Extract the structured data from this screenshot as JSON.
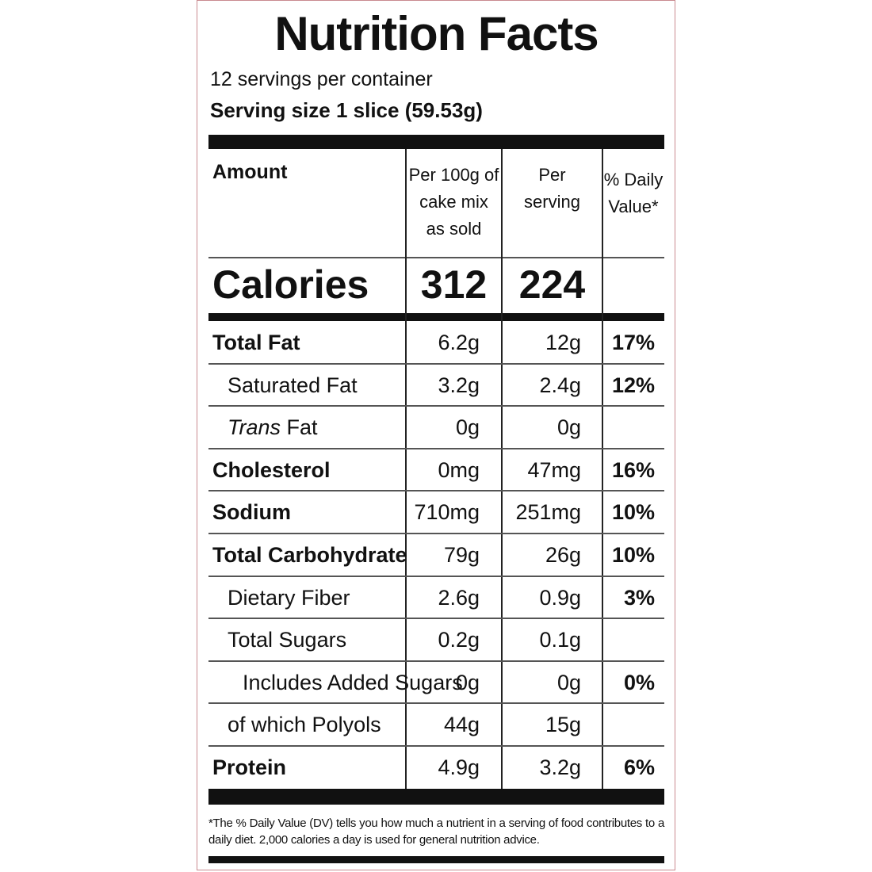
{
  "header": {
    "title": "Nutrition Facts",
    "servings": "12 servings per container",
    "serving_size": "Serving size 1 slice (59.53g)"
  },
  "table": {
    "columns": {
      "amount": "Amount",
      "per100": [
        "Per 100g of",
        "cake mix",
        "as sold"
      ],
      "per_serving": [
        "Per",
        "serving"
      ],
      "dv": [
        "% Daily",
        "Value*"
      ]
    },
    "calories": {
      "label": "Calories",
      "per100": "312",
      "per_serving": "224"
    },
    "rows": [
      {
        "label": "Total Fat",
        "bold": true,
        "indent": 0,
        "per100": "6.2g",
        "per_serving": "12g",
        "dv": "17%"
      },
      {
        "label": "Saturated Fat",
        "bold": false,
        "indent": 1,
        "per100": "3.2g",
        "per_serving": "2.4g",
        "dv": "12%"
      },
      {
        "label_italic": "Trans",
        "label": "Fat",
        "bold": false,
        "indent": 1,
        "per100": "0g",
        "per_serving": "0g"
      },
      {
        "label": "Cholesterol",
        "bold": true,
        "indent": 0,
        "per100": "0mg",
        "per_serving": "47mg",
        "dv": "16%"
      },
      {
        "label": "Sodium",
        "bold": true,
        "indent": 0,
        "per100": "710mg",
        "per_serving": "251mg",
        "dv": "10%"
      },
      {
        "label": "Total Carbohydrate",
        "bold": true,
        "indent": 0,
        "per100": "79g",
        "per_serving": "26g",
        "dv": "10%"
      },
      {
        "label": "Dietary Fiber",
        "bold": false,
        "indent": 1,
        "per100": "2.6g",
        "per_serving": "0.9g",
        "dv": "3%"
      },
      {
        "label": "Total Sugars",
        "bold": false,
        "indent": 1,
        "per100": "0.2g",
        "per_serving": "0.1g"
      },
      {
        "label": "Includes Added Sugars",
        "bold": false,
        "indent": 2,
        "per100": "0g",
        "per_serving": "0g",
        "dv": "0%"
      },
      {
        "label": "of which Polyols",
        "bold": false,
        "indent": 1,
        "per100": "44g",
        "per_serving": "15g"
      },
      {
        "label": "Protein",
        "bold": true,
        "indent": 0,
        "per100": "4.9g",
        "per_serving": "3.2g",
        "dv": "6%"
      }
    ]
  },
  "footnote": "*The % Daily Value (DV) tells you how much a nutrient in a serving of food contributes to a daily diet. 2,000 calories a day is used for general nutrition advice."
}
